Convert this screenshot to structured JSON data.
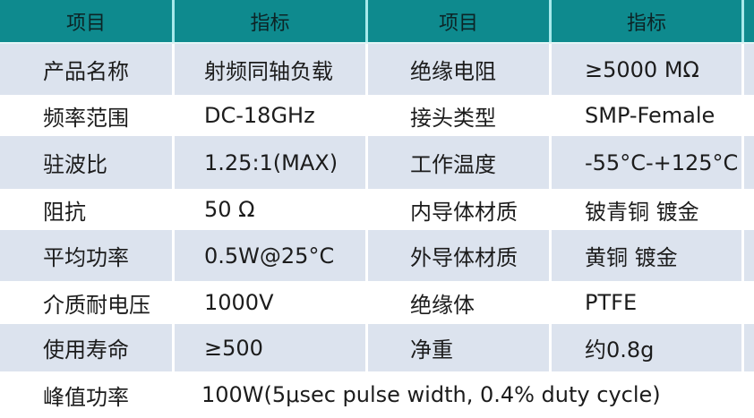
{
  "table": {
    "header": [
      "项目",
      "指标",
      "项目",
      "指标"
    ],
    "rows": [
      {
        "c1": "产品名称",
        "v1": "射频同轴负载",
        "c2": "绝缘电阻",
        "v2": "≥5000 MΩ"
      },
      {
        "c1": "频率范围",
        "v1": "DC-18GHz",
        "c2": "接头类型",
        "v2": "SMP-Female"
      },
      {
        "c1": "驻波比",
        "v1": "1.25:1(MAX)",
        "c2": "工作温度",
        "v2": "-55°C-+125°C"
      },
      {
        "c1": "阻抗",
        "v1": "50 Ω",
        "c2": "内导体材质",
        "v2": "铍青铜 镀金"
      },
      {
        "c1": "平均功率",
        "v1": "0.5W@25°C",
        "c2": "外导体材质",
        "v2": "黄铜 镀金"
      },
      {
        "c1": "介质耐电压",
        "v1": "1000V",
        "c2": "绝缘体",
        "v2": "PTFE"
      },
      {
        "c1": "使用寿命",
        "v1": "≥500",
        "c2": "净重",
        "v2": "约0.8g"
      },
      {
        "c1": "峰值功率",
        "v1": "100W(5μsec pulse width, 0.4% duty cycle)"
      }
    ],
    "colors": {
      "header_bg": "#0e8a8e",
      "header_divider": "#a7e9eb",
      "shade_row_bg": "#dce3ee",
      "white_row_bg": "#ffffff",
      "body_text": "#1c1c1c",
      "header_text": "#0c2426"
    }
  }
}
